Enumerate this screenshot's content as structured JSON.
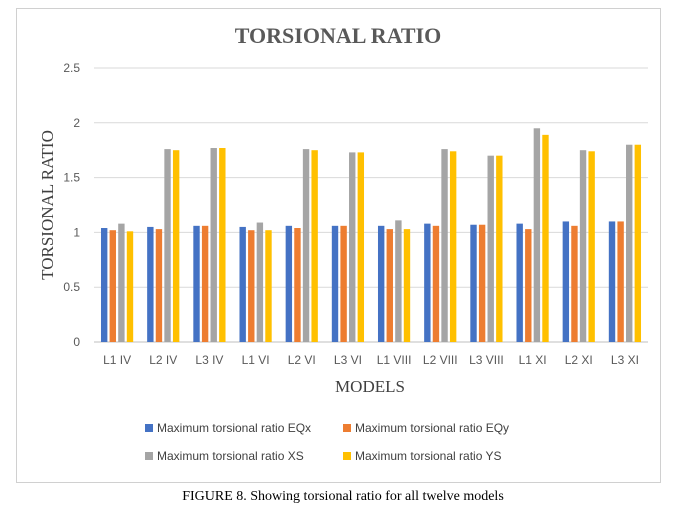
{
  "chart_data": {
    "type": "bar",
    "title": "TORSIONAL RATIO",
    "xlabel": "MODELS",
    "ylabel": "TORSIONAL RATIO",
    "ylim": [
      0,
      2.5
    ],
    "yticks": [
      "0",
      "0.5",
      "1",
      "1.5",
      "2",
      "2.5"
    ],
    "grid": true,
    "legend_position": "bottom",
    "categories": [
      "L1 IV",
      "L2 IV",
      "L3 IV",
      "L1 VI",
      "L2 VI",
      "L3 VI",
      "L1 VIII",
      "L2 VIII",
      "L3 VIII",
      "L1 XI",
      "L2 XI",
      "L3 XI"
    ],
    "series": [
      {
        "name": "Maximum torsional ratio  EQx",
        "color": "#4472C4",
        "values": [
          1.04,
          1.05,
          1.06,
          1.05,
          1.06,
          1.06,
          1.06,
          1.08,
          1.07,
          1.08,
          1.1,
          1.1
        ]
      },
      {
        "name": "Maximum torsional ratio  EQy",
        "color": "#ED7D31",
        "values": [
          1.02,
          1.03,
          1.06,
          1.02,
          1.04,
          1.06,
          1.03,
          1.06,
          1.07,
          1.03,
          1.06,
          1.1
        ]
      },
      {
        "name": "Maximum torsional ratio  XS",
        "color": "#A5A5A5",
        "values": [
          1.08,
          1.76,
          1.77,
          1.09,
          1.76,
          1.73,
          1.11,
          1.76,
          1.7,
          1.95,
          1.75,
          1.8
        ]
      },
      {
        "name": "Maximum torsional ratio  YS",
        "color": "#FFC000",
        "values": [
          1.01,
          1.75,
          1.77,
          1.02,
          1.75,
          1.73,
          1.03,
          1.74,
          1.7,
          1.89,
          1.74,
          1.8
        ]
      }
    ]
  },
  "caption": "FIGURE 8. Showing torsional ratio for all twelve models"
}
